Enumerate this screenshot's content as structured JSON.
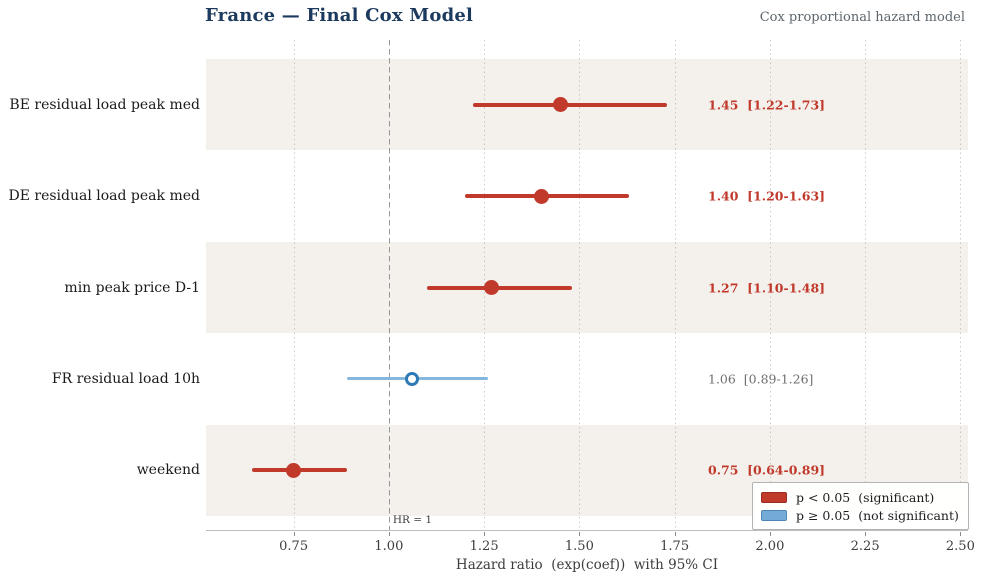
{
  "header": {
    "title": "France — Final Cox Model",
    "subtitle": "Cox proportional hazard model"
  },
  "chart_data": {
    "type": "scatter",
    "subtype": "forest-plot",
    "title": "France — Final Cox Model",
    "subtitle": "Cox proportional hazard model",
    "xlabel": "Hazard ratio  (exp(coef))  with 95% CI",
    "xlim": [
      0.52,
      2.52
    ],
    "xticks": [
      0.75,
      1.0,
      1.25,
      1.5,
      1.75,
      2.0,
      2.25,
      2.5
    ],
    "xtick_labels": [
      "0.75",
      "1.00",
      "1.25",
      "1.50",
      "1.75",
      "2.00",
      "2.25",
      "2.50"
    ],
    "grid": "vertical-dotted",
    "reference_line": {
      "value": 1.0,
      "label": "HR = 1"
    },
    "rows": [
      {
        "label": "BE residual load peak med",
        "hr": 1.45,
        "ci_low": 1.22,
        "ci_high": 1.73,
        "significant": true,
        "annotation": "1.45  [1.22-1.73]",
        "band": true
      },
      {
        "label": "DE residual load peak med",
        "hr": 1.4,
        "ci_low": 1.2,
        "ci_high": 1.63,
        "significant": true,
        "annotation": "1.40  [1.20-1.63]",
        "band": false
      },
      {
        "label": "min peak price D-1",
        "hr": 1.27,
        "ci_low": 1.1,
        "ci_high": 1.48,
        "significant": true,
        "annotation": "1.27  [1.10-1.48]",
        "band": true
      },
      {
        "label": "FR residual load 10h",
        "hr": 1.06,
        "ci_low": 0.89,
        "ci_high": 1.26,
        "significant": false,
        "annotation": "1.06  [0.89-1.26]",
        "band": false
      },
      {
        "label": "weekend",
        "hr": 0.75,
        "ci_low": 0.64,
        "ci_high": 0.89,
        "significant": true,
        "annotation": "0.75  [0.64-0.89]",
        "band": true
      }
    ],
    "legend": [
      {
        "label": "p < 0.05  (significant)",
        "color": "#c0392b",
        "edge": "#9c2d20"
      },
      {
        "label": "p ≥ 0.05  (not significant)",
        "color": "#74aad6",
        "edge": "#4f86b5"
      }
    ],
    "legend_position": "lower right",
    "colors": {
      "significant": "#c0392b",
      "nonsignificant_line": "#85b7dc",
      "nonsignificant_marker_edge": "#2f79b5",
      "band": "#f4f1ec",
      "title": "#1c3a5e",
      "muted_annotation": "#6f6f6f"
    }
  }
}
